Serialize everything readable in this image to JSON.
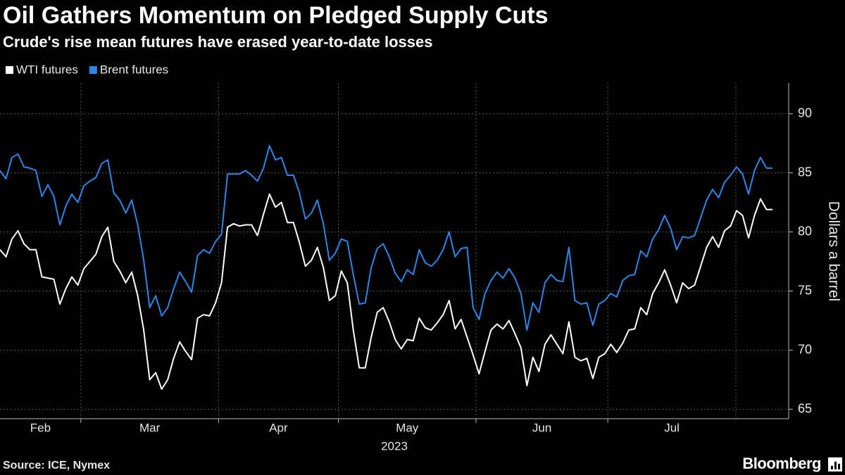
{
  "chart_data": {
    "type": "line",
    "title": "Oil Gathers Momentum on Pledged Supply Cuts",
    "subtitle": "Crude's rise mean futures have erased year-to-date losses",
    "source": "Source: ICE, Nymex",
    "brand": "Bloomberg",
    "x_label": "2023",
    "y_label": "Dollars a barrel",
    "categories": [
      "Feb",
      null,
      null,
      null,
      null,
      null,
      null,
      null,
      null,
      null,
      null,
      null,
      null,
      null,
      "Mar",
      null,
      null,
      null,
      null,
      null,
      null,
      null,
      null,
      null,
      null,
      null,
      null,
      null,
      null,
      null,
      null,
      null,
      null,
      null,
      null,
      null,
      null,
      "Apr",
      null,
      null,
      null,
      null,
      null,
      null,
      null,
      null,
      null,
      null,
      null,
      null,
      null,
      null,
      null,
      null,
      null,
      null,
      null,
      "May",
      null,
      null,
      null,
      null,
      null,
      null,
      null,
      null,
      null,
      null,
      null,
      null,
      null,
      null,
      null,
      null,
      null,
      null,
      null,
      null,
      null,
      null,
      "Jun",
      null,
      null,
      null,
      null,
      null,
      null,
      null,
      null,
      null,
      null,
      null,
      null,
      null,
      null,
      null,
      null,
      null,
      null,
      null,
      null,
      null,
      "Jul",
      null,
      null,
      null,
      null,
      null,
      null,
      null,
      null,
      null,
      null,
      null,
      null,
      null,
      null,
      null,
      null,
      null,
      null,
      null,
      null,
      null,
      null,
      null,
      null,
      null,
      null,
      null
    ],
    "series": [
      {
        "name": "WTI futures",
        "color": "#ffffff",
        "values": [
          78.5,
          77.9,
          79.4,
          80.1,
          79.0,
          78.5,
          78.5,
          76.2,
          76.1,
          76.0,
          73.9,
          75.2,
          76.2,
          75.5,
          76.9,
          77.5,
          78.1,
          79.6,
          80.4,
          77.5,
          76.7,
          75.7,
          76.6,
          74.6,
          71.7,
          67.5,
          68.1,
          66.7,
          67.5,
          69.3,
          70.7,
          69.9,
          69.2,
          72.7,
          73.0,
          72.9,
          74.0,
          75.7,
          80.4,
          80.7,
          80.5,
          80.6,
          80.6,
          79.7,
          81.5,
          83.2,
          82.1,
          82.5,
          80.8,
          80.8,
          79.1,
          77.1,
          77.6,
          78.7,
          77.0,
          74.2,
          74.6,
          76.7,
          75.7,
          71.7,
          68.5,
          68.5,
          71.1,
          73.2,
          73.6,
          72.4,
          70.9,
          70.1,
          70.9,
          70.8,
          72.7,
          71.9,
          71.7,
          72.3,
          73.0,
          74.2,
          71.8,
          72.6,
          71.1,
          69.6,
          68.0,
          69.9,
          71.7,
          72.2,
          71.8,
          72.5,
          71.4,
          70.2,
          67.0,
          69.4,
          68.2,
          70.5,
          71.3,
          70.5,
          69.7,
          72.4,
          69.4,
          69.1,
          69.3,
          67.6,
          69.4,
          69.7,
          70.5,
          69.8,
          70.6,
          71.7,
          71.8,
          73.6,
          73.0,
          74.8,
          75.7,
          76.8,
          75.5,
          74.0,
          75.7,
          75.2,
          75.5,
          77.1,
          78.7,
          79.6,
          78.7,
          80.1,
          80.5,
          81.8,
          81.4,
          79.5,
          81.4,
          82.8,
          81.9,
          81.9
        ]
      },
      {
        "name": "Brent futures",
        "color": "#2e86e6",
        "values": [
          85.2,
          84.5,
          86.3,
          86.6,
          85.5,
          85.4,
          85.2,
          83.0,
          84.0,
          83.0,
          80.6,
          82.2,
          83.2,
          82.5,
          83.9,
          84.3,
          84.6,
          85.8,
          86.1,
          83.3,
          82.7,
          81.6,
          82.7,
          80.6,
          77.6,
          73.6,
          74.6,
          72.9,
          73.6,
          75.2,
          76.6,
          75.8,
          74.9,
          78.0,
          78.5,
          78.2,
          79.2,
          79.8,
          84.9,
          84.9,
          84.9,
          85.2,
          84.8,
          84.3,
          85.4,
          87.3,
          86.1,
          86.3,
          84.8,
          84.8,
          83.3,
          81.1,
          81.6,
          82.7,
          80.7,
          77.6,
          78.2,
          79.4,
          79.2,
          76.4,
          73.9,
          74.0,
          77.0,
          78.6,
          79.0,
          77.9,
          76.5,
          75.8,
          76.8,
          76.4,
          78.5,
          77.4,
          77.1,
          77.6,
          78.5,
          80.0,
          77.9,
          78.6,
          78.7,
          73.6,
          72.6,
          74.8,
          75.9,
          76.6,
          76.1,
          76.9,
          76.1,
          74.8,
          71.7,
          74.0,
          73.2,
          75.7,
          76.4,
          75.9,
          75.8,
          78.7,
          74.2,
          73.9,
          74.0,
          72.1,
          73.9,
          74.2,
          74.8,
          74.5,
          75.9,
          76.3,
          76.4,
          78.4,
          77.9,
          79.4,
          80.2,
          81.4,
          80.3,
          78.5,
          79.6,
          79.5,
          79.7,
          81.2,
          82.7,
          83.6,
          82.9,
          84.2,
          84.8,
          85.5,
          84.9,
          83.2,
          85.2,
          86.3,
          85.4,
          85.4
        ]
      }
    ],
    "ylim": [
      64.2,
      92.6
    ],
    "yticks": [
      65,
      70,
      75,
      80,
      85,
      90
    ],
    "grid": true,
    "legend": "top-left"
  }
}
